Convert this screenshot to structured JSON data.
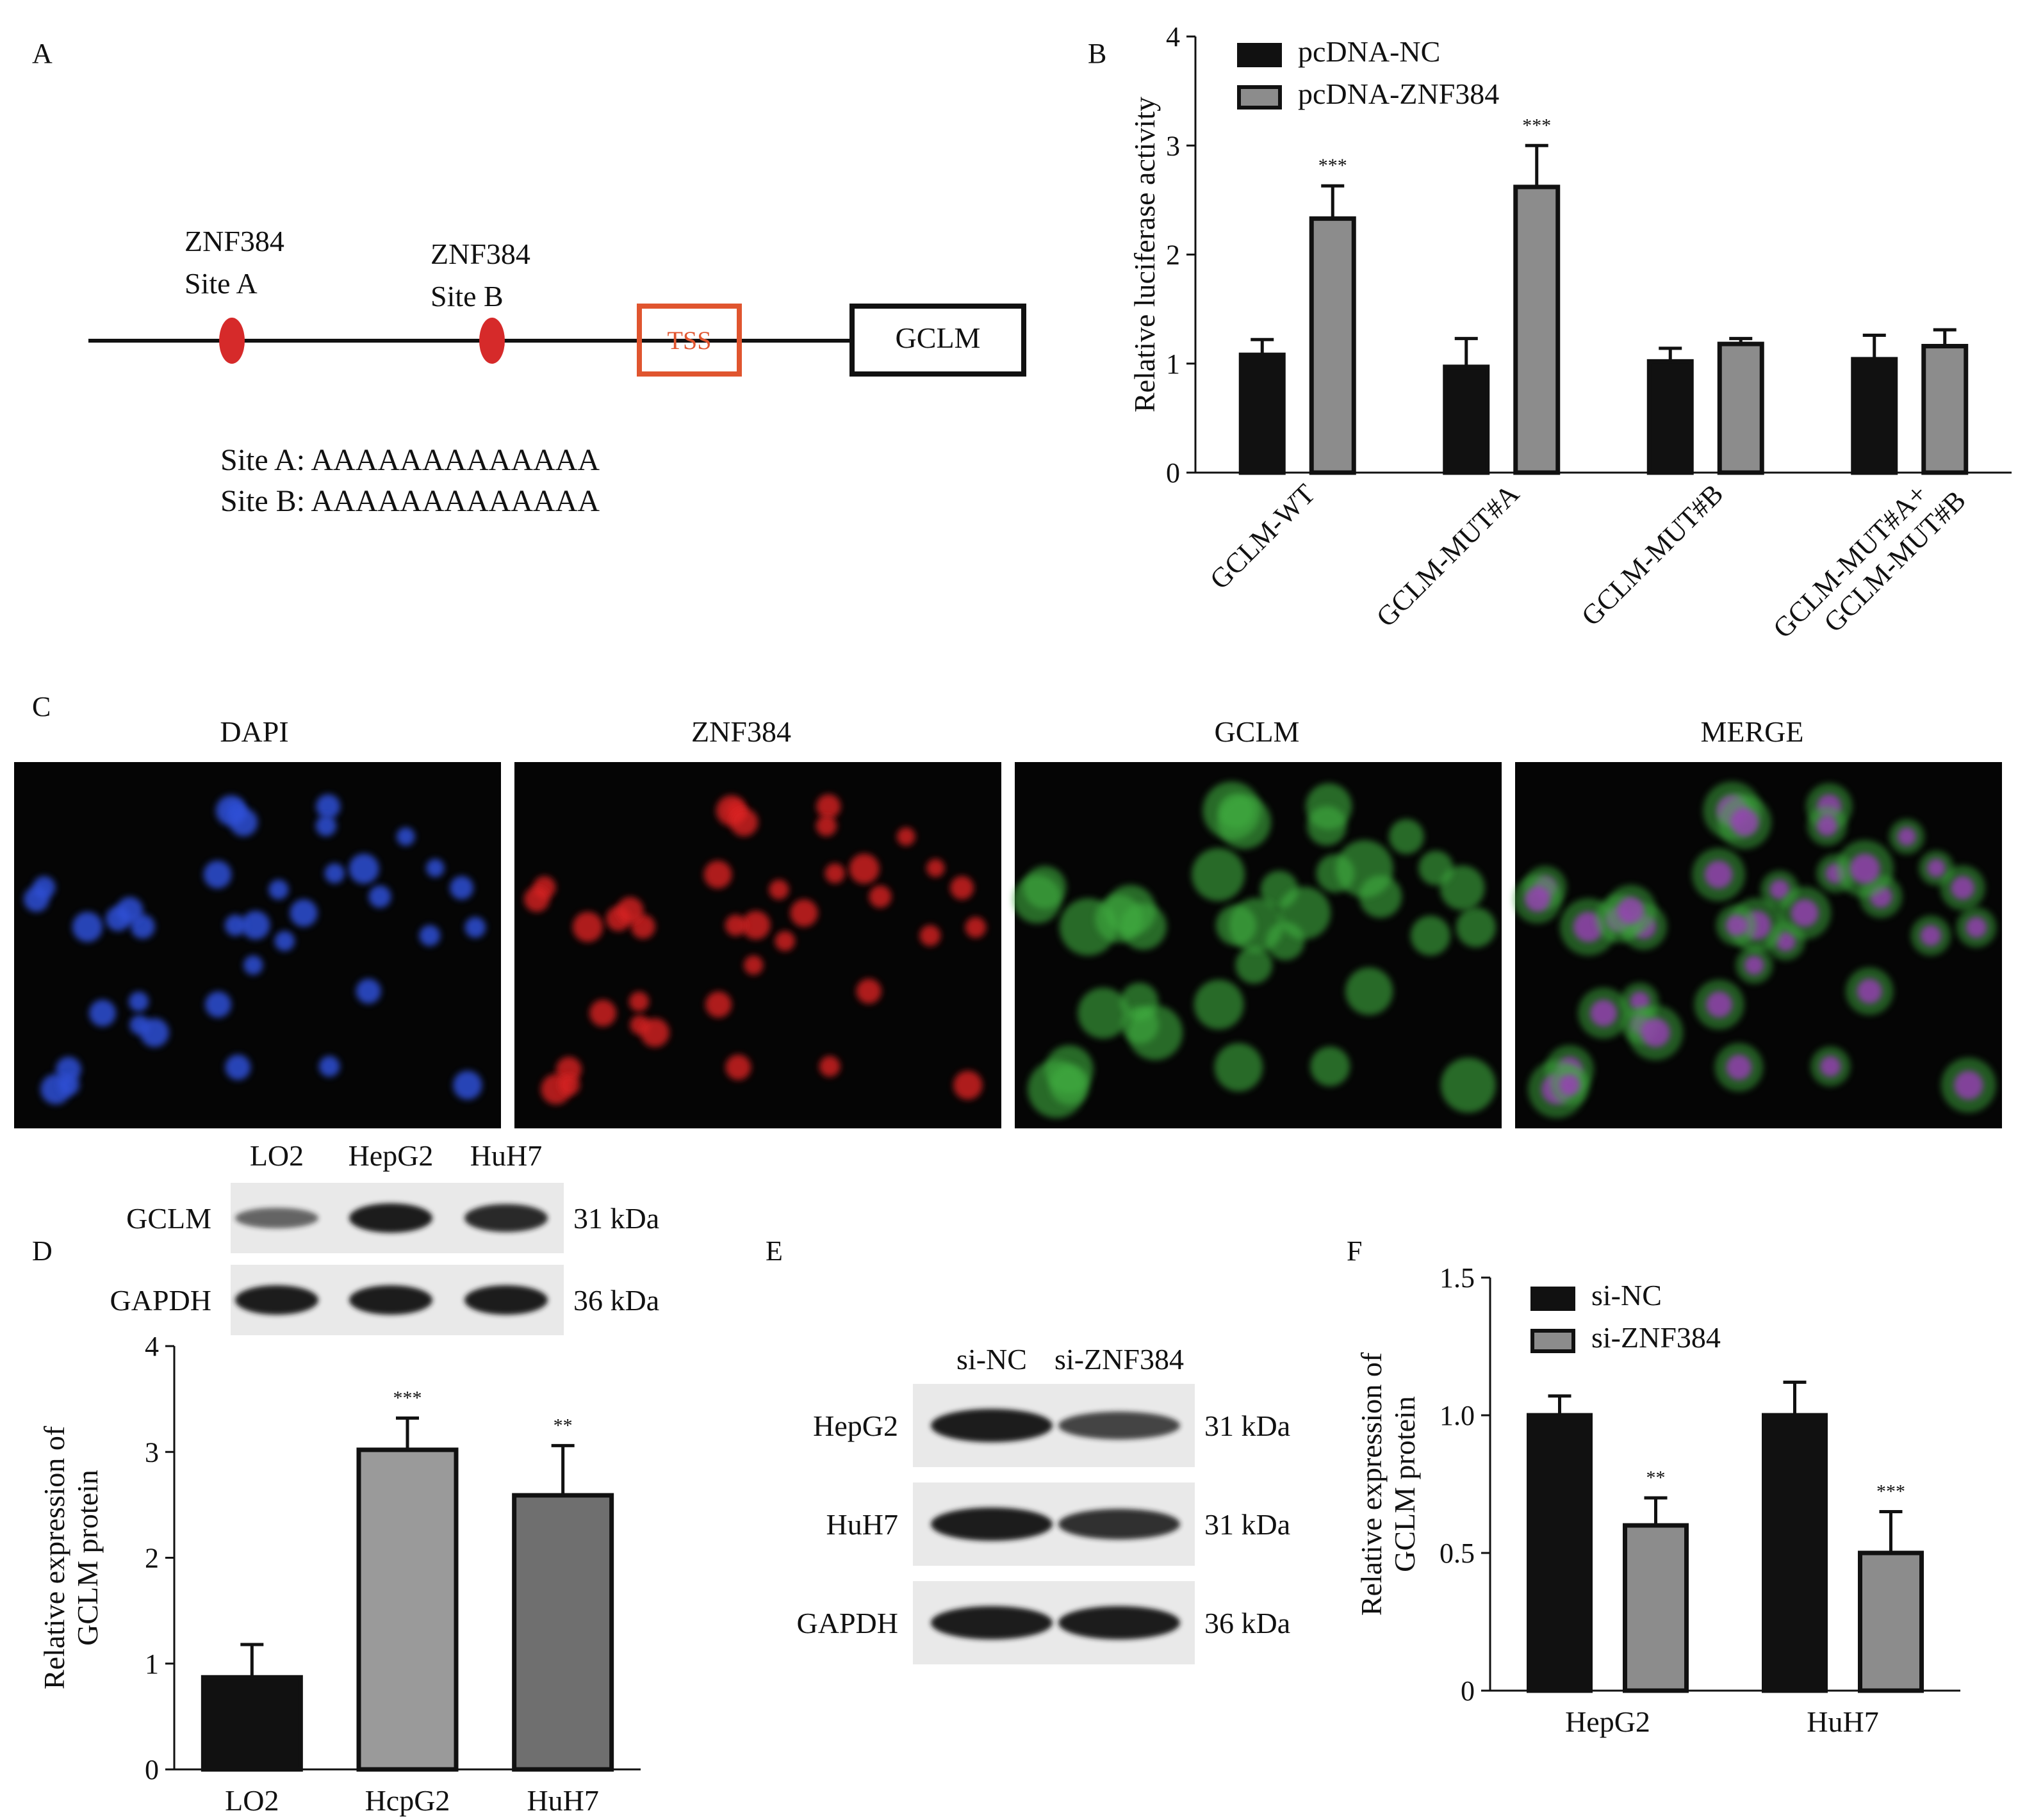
{
  "panel_letters": {
    "a": "A",
    "b": "B",
    "c": "C",
    "d": "D",
    "e": "E",
    "f": "F"
  },
  "panel_a": {
    "site_a_label": [
      "ZNF384",
      "Site A"
    ],
    "site_b_label": [
      "ZNF384",
      "Site B"
    ],
    "tss_label": "TSS",
    "gene_label": "GCLM",
    "seq_a": "Site A: AAAAAAAAAAAAA",
    "seq_b": "Site B: AAAAAAAAAAAAA",
    "colors": {
      "site": "#d62a2a",
      "tss": "#e0552f",
      "line": "#111111"
    }
  },
  "panel_c": {
    "titles": [
      "DAPI",
      "ZNF384",
      "GCLM",
      "MERGE"
    ],
    "channel_colors": [
      "#2f4fd6",
      "#d92424",
      "#3fae3f",
      "merge"
    ]
  },
  "panel_d_blot": {
    "lanes": [
      "LO2",
      "HepG2",
      "HuH7"
    ],
    "rows": [
      {
        "label": "GCLM",
        "kda": "31 kDa",
        "intensity": [
          0.45,
          1.0,
          0.9
        ]
      },
      {
        "label": "GAPDH",
        "kda": "36 kDa",
        "intensity": [
          1.0,
          1.0,
          1.0
        ]
      }
    ]
  },
  "panel_e_blot": {
    "lanes": [
      "si-NC",
      "si-ZNF384"
    ],
    "rows": [
      {
        "label": "HepG2",
        "kda": "31 kDa",
        "intensity": [
          1.0,
          0.7
        ]
      },
      {
        "label": "HuH7",
        "kda": "31 kDa",
        "intensity": [
          1.0,
          0.85
        ]
      },
      {
        "label": "GAPDH",
        "kda": "36 kDa",
        "intensity": [
          1.0,
          1.0
        ]
      }
    ]
  },
  "chart_data": [
    {
      "id": "B",
      "type": "bar",
      "categories": [
        "GCLM-WT",
        "GCLM-MUT#A",
        "GCLM-MUT#B",
        "GCLM-MUT#A+\nGCLM-MUT#B"
      ],
      "series": [
        {
          "name": "pcDNA-NC",
          "color": "#111111",
          "values": [
            1.08,
            0.97,
            1.02,
            1.04
          ],
          "errors": [
            0.14,
            0.26,
            0.12,
            0.22
          ],
          "sig": [
            "",
            "",
            "",
            ""
          ]
        },
        {
          "name": "pcDNA-ZNF384",
          "color": "#8c8c8c",
          "values": [
            2.33,
            2.62,
            1.18,
            1.16
          ],
          "errors": [
            0.3,
            0.38,
            0.05,
            0.15
          ],
          "sig": [
            "***",
            "***",
            "",
            ""
          ]
        }
      ],
      "ylabel": "Relative luciferase activity",
      "ylim": [
        0,
        4
      ],
      "yticks": [
        "0",
        "1",
        "2",
        "3",
        "4"
      ],
      "legend": "top-left"
    },
    {
      "id": "D",
      "type": "bar",
      "categories": [
        "LO2",
        "HcpG2",
        "HuH7"
      ],
      "series": [
        {
          "name": "",
          "colors": [
            "#111111",
            "#9a9a9a",
            "#6f6f6f"
          ],
          "values": [
            0.87,
            3.02,
            2.59
          ],
          "errors": [
            0.31,
            0.3,
            0.47
          ],
          "sig": [
            "",
            "***",
            "**"
          ]
        }
      ],
      "ylabel": [
        "Relative expression of",
        "GCLM protein"
      ],
      "ylim": [
        0,
        4
      ],
      "yticks": [
        "0",
        "1",
        "2",
        "3",
        "4"
      ]
    },
    {
      "id": "F",
      "type": "bar",
      "categories": [
        "HepG2",
        "HuH7"
      ],
      "series": [
        {
          "name": "si-NC",
          "color": "#111111",
          "values": [
            1.0,
            1.0
          ],
          "errors": [
            0.07,
            0.12
          ],
          "sig": [
            "",
            ""
          ]
        },
        {
          "name": "si-ZNF384",
          "color": "#8c8c8c",
          "values": [
            0.6,
            0.5
          ],
          "errors": [
            0.1,
            0.15
          ],
          "sig": [
            "**",
            "***"
          ]
        }
      ],
      "ylabel": [
        "Relative expression of",
        "GCLM protein"
      ],
      "ylim": [
        0,
        1.5
      ],
      "yticks": [
        "0",
        "0.5",
        "1.0",
        "1.5"
      ],
      "legend": "top-left"
    }
  ]
}
